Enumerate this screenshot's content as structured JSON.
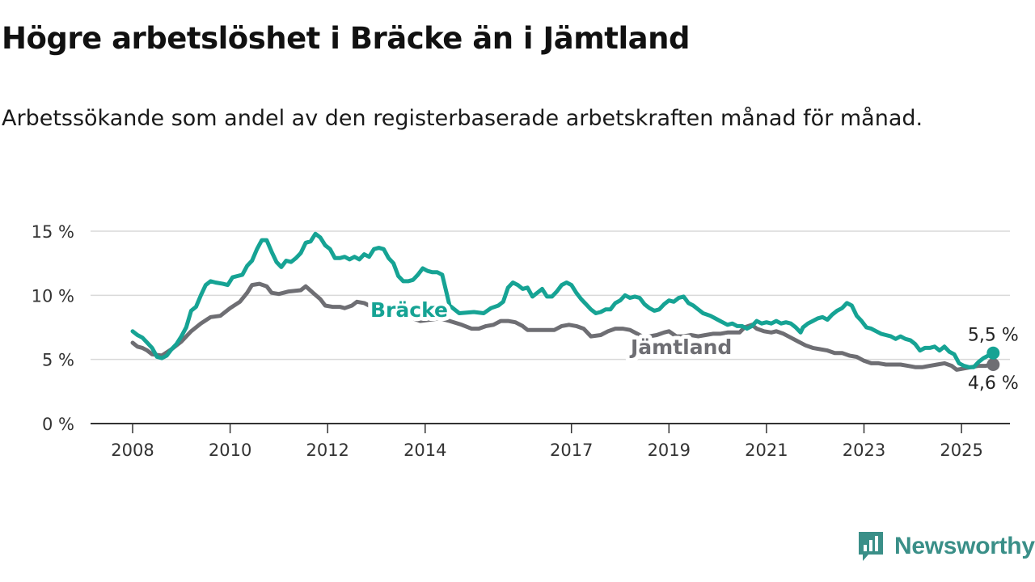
{
  "title": "Högre arbetslöshet i Bräcke än i Jämtland",
  "subtitle": "Arbetssökande som andel av den registerbaserade arbetskraften månad för månad.",
  "brand": {
    "name": "Newsworthy",
    "color": "#3a8f88"
  },
  "chart_data": {
    "type": "line",
    "title": "Högre arbetslöshet i Bräcke än i Jämtland",
    "xlabel": "",
    "ylabel": "",
    "ylim": [
      0,
      15
    ],
    "xlim": [
      2008.0,
      2025.9
    ],
    "y_ticks": [
      {
        "value": 0,
        "label": "0 %"
      },
      {
        "value": 5,
        "label": "5 %"
      },
      {
        "value": 10,
        "label": "10 %"
      },
      {
        "value": 15,
        "label": "15 %"
      }
    ],
    "x_ticks": [
      {
        "value": 2008,
        "label": "2008"
      },
      {
        "value": 2010,
        "label": "2010"
      },
      {
        "value": 2012,
        "label": "2012"
      },
      {
        "value": 2014,
        "label": "2014"
      },
      {
        "value": 2017,
        "label": "2017"
      },
      {
        "value": 2019,
        "label": "2019"
      },
      {
        "value": 2021,
        "label": "2021"
      },
      {
        "value": 2023,
        "label": "2023"
      },
      {
        "value": 2025,
        "label": "2025"
      }
    ],
    "grid": true,
    "series": [
      {
        "name": "Jämtland",
        "color": "#6e6e73",
        "end_label": "4,6 %",
        "points": [
          [
            2008.0,
            6.3
          ],
          [
            2008.1,
            6.0
          ],
          [
            2008.2,
            5.9
          ],
          [
            2008.3,
            5.7
          ],
          [
            2008.4,
            5.4
          ],
          [
            2008.6,
            5.3
          ],
          [
            2008.8,
            5.8
          ],
          [
            2009.0,
            6.4
          ],
          [
            2009.2,
            7.2
          ],
          [
            2009.4,
            7.8
          ],
          [
            2009.6,
            8.3
          ],
          [
            2009.8,
            8.4
          ],
          [
            2010.0,
            9.0
          ],
          [
            2010.2,
            9.5
          ],
          [
            2010.35,
            10.2
          ],
          [
            2010.45,
            10.8
          ],
          [
            2010.6,
            10.9
          ],
          [
            2010.75,
            10.7
          ],
          [
            2010.85,
            10.2
          ],
          [
            2011.0,
            10.1
          ],
          [
            2011.2,
            10.3
          ],
          [
            2011.45,
            10.4
          ],
          [
            2011.55,
            10.7
          ],
          [
            2011.7,
            10.2
          ],
          [
            2011.85,
            9.7
          ],
          [
            2011.95,
            9.2
          ],
          [
            2012.1,
            9.1
          ],
          [
            2012.25,
            9.1
          ],
          [
            2012.35,
            9.0
          ],
          [
            2012.5,
            9.2
          ],
          [
            2012.6,
            9.5
          ],
          [
            2012.75,
            9.4
          ],
          [
            2012.9,
            9.1
          ],
          [
            2013.05,
            8.7
          ],
          [
            2013.2,
            8.4
          ],
          [
            2013.4,
            8.5
          ],
          [
            2013.6,
            8.6
          ],
          [
            2013.75,
            8.2
          ],
          [
            2013.9,
            8.0
          ],
          [
            2014.1,
            8.1
          ],
          [
            2014.3,
            8.2
          ],
          [
            2014.5,
            8.0
          ],
          [
            2014.75,
            7.7
          ],
          [
            2014.95,
            7.4
          ],
          [
            2015.1,
            7.4
          ],
          [
            2015.25,
            7.6
          ],
          [
            2015.4,
            7.7
          ],
          [
            2015.55,
            8.0
          ],
          [
            2015.7,
            8.0
          ],
          [
            2015.85,
            7.9
          ],
          [
            2016.0,
            7.6
          ],
          [
            2016.1,
            7.3
          ],
          [
            2016.3,
            7.3
          ],
          [
            2016.5,
            7.3
          ],
          [
            2016.65,
            7.3
          ],
          [
            2016.8,
            7.6
          ],
          [
            2016.95,
            7.7
          ],
          [
            2017.1,
            7.6
          ],
          [
            2017.25,
            7.4
          ],
          [
            2017.4,
            6.8
          ],
          [
            2017.6,
            6.9
          ],
          [
            2017.75,
            7.2
          ],
          [
            2017.9,
            7.4
          ],
          [
            2018.05,
            7.4
          ],
          [
            2018.2,
            7.3
          ],
          [
            2018.3,
            7.1
          ],
          [
            2018.45,
            6.8
          ],
          [
            2018.6,
            6.8
          ],
          [
            2018.75,
            6.9
          ],
          [
            2018.9,
            7.1
          ],
          [
            2019.0,
            7.2
          ],
          [
            2019.15,
            6.8
          ],
          [
            2019.3,
            6.8
          ],
          [
            2019.45,
            6.9
          ],
          [
            2019.6,
            6.8
          ],
          [
            2019.75,
            6.9
          ],
          [
            2019.9,
            7.0
          ],
          [
            2020.05,
            7.0
          ],
          [
            2020.2,
            7.1
          ],
          [
            2020.35,
            7.1
          ],
          [
            2020.45,
            7.1
          ],
          [
            2020.55,
            7.5
          ],
          [
            2020.7,
            7.7
          ],
          [
            2020.8,
            7.4
          ],
          [
            2020.95,
            7.2
          ],
          [
            2021.1,
            7.1
          ],
          [
            2021.2,
            7.2
          ],
          [
            2021.35,
            7.0
          ],
          [
            2021.5,
            6.7
          ],
          [
            2021.65,
            6.4
          ],
          [
            2021.8,
            6.1
          ],
          [
            2021.95,
            5.9
          ],
          [
            2022.1,
            5.8
          ],
          [
            2022.25,
            5.7
          ],
          [
            2022.4,
            5.5
          ],
          [
            2022.55,
            5.5
          ],
          [
            2022.7,
            5.3
          ],
          [
            2022.85,
            5.2
          ],
          [
            2023.0,
            4.9
          ],
          [
            2023.15,
            4.7
          ],
          [
            2023.3,
            4.7
          ],
          [
            2023.45,
            4.6
          ],
          [
            2023.6,
            4.6
          ],
          [
            2023.75,
            4.6
          ],
          [
            2023.9,
            4.5
          ],
          [
            2024.05,
            4.4
          ],
          [
            2024.2,
            4.4
          ],
          [
            2024.35,
            4.5
          ],
          [
            2024.5,
            4.6
          ],
          [
            2024.65,
            4.7
          ],
          [
            2024.8,
            4.5
          ],
          [
            2024.9,
            4.2
          ],
          [
            2025.05,
            4.3
          ],
          [
            2025.2,
            4.4
          ],
          [
            2025.35,
            4.5
          ],
          [
            2025.5,
            4.5
          ],
          [
            2025.6,
            4.6
          ],
          [
            2025.65,
            4.6
          ]
        ]
      },
      {
        "name": "Bräcke",
        "color": "#16a394",
        "end_label": "5,5 %",
        "points": [
          [
            2008.0,
            7.2
          ],
          [
            2008.1,
            6.9
          ],
          [
            2008.2,
            6.7
          ],
          [
            2008.3,
            6.3
          ],
          [
            2008.4,
            5.9
          ],
          [
            2008.5,
            5.2
          ],
          [
            2008.6,
            5.1
          ],
          [
            2008.7,
            5.3
          ],
          [
            2008.8,
            5.8
          ],
          [
            2008.9,
            6.2
          ],
          [
            2009.0,
            6.8
          ],
          [
            2009.1,
            7.5
          ],
          [
            2009.2,
            8.8
          ],
          [
            2009.3,
            9.1
          ],
          [
            2009.4,
            10.0
          ],
          [
            2009.5,
            10.8
          ],
          [
            2009.6,
            11.1
          ],
          [
            2009.7,
            11.0
          ],
          [
            2009.85,
            10.9
          ],
          [
            2009.95,
            10.8
          ],
          [
            2010.05,
            11.4
          ],
          [
            2010.15,
            11.5
          ],
          [
            2010.25,
            11.6
          ],
          [
            2010.35,
            12.3
          ],
          [
            2010.45,
            12.7
          ],
          [
            2010.55,
            13.6
          ],
          [
            2010.65,
            14.3
          ],
          [
            2010.75,
            14.3
          ],
          [
            2010.85,
            13.4
          ],
          [
            2010.95,
            12.6
          ],
          [
            2011.05,
            12.2
          ],
          [
            2011.15,
            12.7
          ],
          [
            2011.25,
            12.6
          ],
          [
            2011.35,
            12.9
          ],
          [
            2011.45,
            13.3
          ],
          [
            2011.55,
            14.1
          ],
          [
            2011.65,
            14.2
          ],
          [
            2011.75,
            14.8
          ],
          [
            2011.85,
            14.5
          ],
          [
            2011.95,
            13.9
          ],
          [
            2012.05,
            13.6
          ],
          [
            2012.15,
            12.9
          ],
          [
            2012.25,
            12.9
          ],
          [
            2012.35,
            13.0
          ],
          [
            2012.45,
            12.8
          ],
          [
            2012.55,
            13.0
          ],
          [
            2012.65,
            12.8
          ],
          [
            2012.75,
            13.2
          ],
          [
            2012.85,
            13.0
          ],
          [
            2012.95,
            13.6
          ],
          [
            2013.05,
            13.7
          ],
          [
            2013.15,
            13.6
          ],
          [
            2013.25,
            12.9
          ],
          [
            2013.35,
            12.5
          ],
          [
            2013.45,
            11.5
          ],
          [
            2013.55,
            11.1
          ],
          [
            2013.65,
            11.1
          ],
          [
            2013.75,
            11.2
          ],
          [
            2013.85,
            11.6
          ],
          [
            2013.95,
            12.1
          ],
          [
            2014.05,
            11.9
          ],
          [
            2014.15,
            11.8
          ],
          [
            2014.25,
            11.8
          ],
          [
            2014.35,
            11.6
          ],
          [
            2014.5,
            9.2
          ],
          [
            2014.7,
            8.6
          ],
          [
            2015.0,
            8.7
          ],
          [
            2015.2,
            8.6
          ],
          [
            2015.35,
            9.0
          ],
          [
            2015.5,
            9.2
          ],
          [
            2015.6,
            9.5
          ],
          [
            2015.7,
            10.6
          ],
          [
            2015.8,
            11.0
          ],
          [
            2015.9,
            10.8
          ],
          [
            2016.0,
            10.5
          ],
          [
            2016.1,
            10.6
          ],
          [
            2016.2,
            9.9
          ],
          [
            2016.3,
            10.2
          ],
          [
            2016.4,
            10.5
          ],
          [
            2016.5,
            9.9
          ],
          [
            2016.6,
            9.9
          ],
          [
            2016.7,
            10.3
          ],
          [
            2016.8,
            10.8
          ],
          [
            2016.9,
            11.0
          ],
          [
            2017.0,
            10.8
          ],
          [
            2017.1,
            10.2
          ],
          [
            2017.2,
            9.7
          ],
          [
            2017.3,
            9.3
          ],
          [
            2017.4,
            8.9
          ],
          [
            2017.5,
            8.6
          ],
          [
            2017.6,
            8.7
          ],
          [
            2017.7,
            8.9
          ],
          [
            2017.8,
            8.9
          ],
          [
            2017.9,
            9.4
          ],
          [
            2018.0,
            9.6
          ],
          [
            2018.1,
            10.0
          ],
          [
            2018.2,
            9.8
          ],
          [
            2018.3,
            9.9
          ],
          [
            2018.4,
            9.8
          ],
          [
            2018.5,
            9.3
          ],
          [
            2018.6,
            9.0
          ],
          [
            2018.7,
            8.8
          ],
          [
            2018.8,
            8.9
          ],
          [
            2018.9,
            9.3
          ],
          [
            2019.0,
            9.6
          ],
          [
            2019.1,
            9.5
          ],
          [
            2019.2,
            9.8
          ],
          [
            2019.3,
            9.9
          ],
          [
            2019.4,
            9.4
          ],
          [
            2019.5,
            9.2
          ],
          [
            2019.6,
            8.9
          ],
          [
            2019.7,
            8.6
          ],
          [
            2019.85,
            8.4
          ],
          [
            2020.0,
            8.1
          ],
          [
            2020.1,
            7.9
          ],
          [
            2020.2,
            7.7
          ],
          [
            2020.3,
            7.8
          ],
          [
            2020.4,
            7.6
          ],
          [
            2020.5,
            7.6
          ],
          [
            2020.6,
            7.4
          ],
          [
            2020.7,
            7.6
          ],
          [
            2020.8,
            8.0
          ],
          [
            2020.9,
            7.8
          ],
          [
            2021.0,
            7.9
          ],
          [
            2021.1,
            7.8
          ],
          [
            2021.2,
            8.0
          ],
          [
            2021.3,
            7.8
          ],
          [
            2021.4,
            7.9
          ],
          [
            2021.5,
            7.8
          ],
          [
            2021.6,
            7.5
          ],
          [
            2021.7,
            7.1
          ],
          [
            2021.75,
            7.5
          ],
          [
            2021.85,
            7.8
          ],
          [
            2021.95,
            8.0
          ],
          [
            2022.05,
            8.2
          ],
          [
            2022.15,
            8.3
          ],
          [
            2022.25,
            8.1
          ],
          [
            2022.35,
            8.5
          ],
          [
            2022.45,
            8.8
          ],
          [
            2022.55,
            9.0
          ],
          [
            2022.65,
            9.4
          ],
          [
            2022.75,
            9.2
          ],
          [
            2022.85,
            8.4
          ],
          [
            2022.95,
            8.0
          ],
          [
            2023.05,
            7.5
          ],
          [
            2023.15,
            7.4
          ],
          [
            2023.25,
            7.2
          ],
          [
            2023.35,
            7.0
          ],
          [
            2023.45,
            6.9
          ],
          [
            2023.55,
            6.8
          ],
          [
            2023.65,
            6.6
          ],
          [
            2023.75,
            6.8
          ],
          [
            2023.85,
            6.6
          ],
          [
            2023.95,
            6.5
          ],
          [
            2024.05,
            6.2
          ],
          [
            2024.15,
            5.7
          ],
          [
            2024.25,
            5.9
          ],
          [
            2024.35,
            5.9
          ],
          [
            2024.45,
            6.0
          ],
          [
            2024.55,
            5.7
          ],
          [
            2024.65,
            6.0
          ],
          [
            2024.75,
            5.6
          ],
          [
            2024.85,
            5.4
          ],
          [
            2024.95,
            4.7
          ],
          [
            2025.05,
            4.5
          ],
          [
            2025.15,
            4.4
          ],
          [
            2025.25,
            4.4
          ],
          [
            2025.35,
            4.8
          ],
          [
            2025.45,
            5.1
          ],
          [
            2025.55,
            5.3
          ],
          [
            2025.6,
            5.5
          ],
          [
            2025.65,
            5.5
          ]
        ]
      }
    ]
  }
}
